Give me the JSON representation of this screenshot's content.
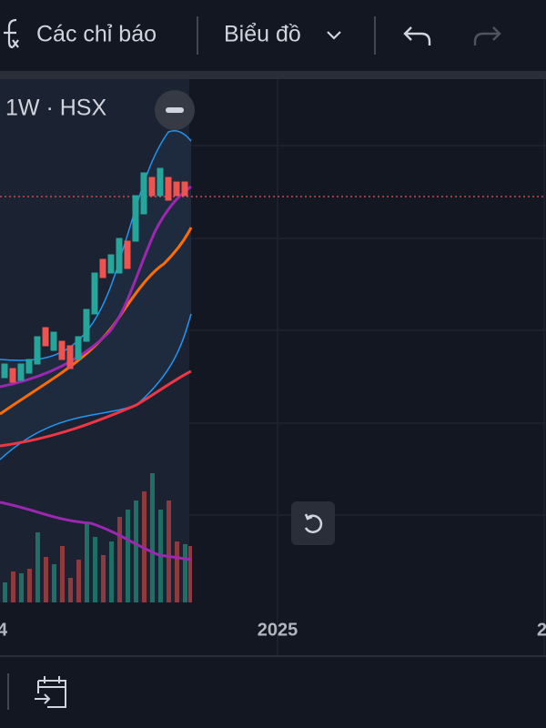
{
  "toolbar": {
    "indicators": "Các chỉ báo",
    "chart_type": "Biểu đồ"
  },
  "chart": {
    "symbol": "1W · HSX",
    "time_labels": [
      "4",
      "2025",
      "2"
    ]
  }
}
